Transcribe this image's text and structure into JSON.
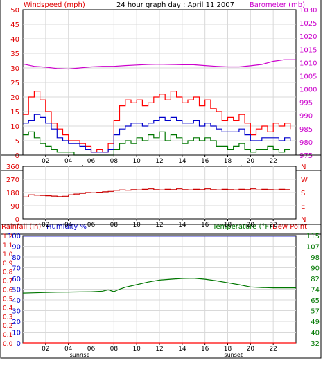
{
  "header": {
    "left_label": "Windspeed (mph)",
    "center_title": "24 hour graph day : April 11 2007",
    "right_label": "Barometer (mb)"
  },
  "colors": {
    "frame": "#000000",
    "grid": "#d9d9d9",
    "title_red": "#e00000",
    "title_magenta": "#cc00cc",
    "title_blue": "#0000cc",
    "title_green": "#007700",
    "wind_red": "#ff0000",
    "wind_blue": "#0000cc",
    "wind_green": "#007700",
    "barometer": "#cc00cc",
    "direction": "#cc0000",
    "humidity": "#0000cc",
    "temperature": "#007700",
    "rainfall": "#ff0000"
  },
  "chart_data": [
    {
      "type": "line",
      "title": "24 hour graph day : April 11 2007",
      "x_ticks": [
        "02",
        "04",
        "06",
        "08",
        "10",
        "12",
        "14",
        "16",
        "18",
        "20",
        "22"
      ],
      "x_annotations": [
        "sunrise",
        "sunset"
      ],
      "xlim": [
        0,
        24
      ],
      "ylabel": "Windspeed (mph)",
      "ylim": [
        0,
        50
      ],
      "y_ticks": [
        "0",
        "5",
        "10",
        "15",
        "20",
        "25",
        "30",
        "35",
        "40",
        "45",
        "50"
      ],
      "y2label": "Barometer (mb)",
      "y2lim": [
        975,
        1030
      ],
      "y2_ticks": [
        "975",
        "980",
        "985",
        "990",
        "995",
        "1000",
        "1005",
        "1010",
        "1015",
        "1020",
        "1025",
        "1030"
      ],
      "grid": true,
      "series": [
        {
          "axis": "left",
          "x": [
            0,
            0.5,
            1,
            1.5,
            2,
            2.5,
            3,
            3.5,
            4,
            4.5,
            5,
            5.5,
            6,
            6.5,
            7,
            7.5,
            8,
            8.5,
            9,
            9.5,
            10,
            10.5,
            11,
            11.5,
            12,
            12.5,
            13,
            13.5,
            14,
            14.5,
            15,
            15.5,
            16,
            16.5,
            17,
            17.5,
            18,
            18.5,
            19,
            19.5,
            20,
            20.5,
            21,
            21.5,
            22,
            22.5,
            23,
            23.5
          ],
          "values": [
            14,
            20,
            22,
            19,
            15,
            11,
            9,
            7,
            5,
            5,
            4,
            3,
            1,
            2,
            1,
            4,
            12,
            17,
            19,
            18,
            19,
            17,
            18,
            20,
            21,
            19,
            22,
            20,
            18,
            19,
            20,
            17,
            19,
            16,
            15,
            12,
            13,
            12,
            14,
            11,
            7,
            9,
            10,
            8,
            11,
            10,
            11,
            9
          ]
        },
        {
          "axis": "left",
          "x": [
            0,
            0.5,
            1,
            1.5,
            2,
            2.5,
            3,
            3.5,
            4,
            4.5,
            5,
            5.5,
            6,
            6.5,
            7,
            7.5,
            8,
            8.5,
            9,
            9.5,
            10,
            10.5,
            11,
            11.5,
            12,
            12.5,
            13,
            13.5,
            14,
            14.5,
            15,
            15.5,
            16,
            16.5,
            17,
            17.5,
            18,
            18.5,
            19,
            19.5,
            20,
            20.5,
            21,
            21.5,
            22,
            22.5,
            23,
            23.5
          ],
          "values": [
            11,
            12,
            14,
            13,
            11,
            9,
            6,
            5,
            4,
            4,
            3,
            2,
            1,
            1,
            1,
            2,
            7,
            9,
            10,
            11,
            11,
            10,
            11,
            12,
            13,
            12,
            13,
            12,
            11,
            11,
            12,
            10,
            11,
            10,
            9,
            8,
            8,
            8,
            9,
            7,
            5,
            5,
            6,
            6,
            6,
            5,
            6,
            5
          ]
        },
        {
          "axis": "left",
          "x": [
            0,
            0.5,
            1,
            1.5,
            2,
            2.5,
            3,
            3.5,
            4,
            4.5,
            5,
            5.5,
            6,
            6.5,
            7,
            7.5,
            8,
            8.5,
            9,
            9.5,
            10,
            10.5,
            11,
            11.5,
            12,
            12.5,
            13,
            13.5,
            14,
            14.5,
            15,
            15.5,
            16,
            16.5,
            17,
            17.5,
            18,
            18.5,
            19,
            19.5,
            20,
            20.5,
            21,
            21.5,
            22,
            22.5,
            23,
            23.5
          ],
          "values": [
            7,
            8,
            6,
            4,
            3,
            2,
            1,
            1,
            1,
            0,
            0,
            0,
            0,
            0,
            0,
            0,
            2,
            4,
            5,
            4,
            6,
            5,
            7,
            6,
            8,
            5,
            7,
            6,
            4,
            5,
            6,
            5,
            6,
            5,
            3,
            3,
            2,
            3,
            4,
            2,
            1,
            2,
            2,
            3,
            2,
            1,
            2,
            2
          ]
        },
        {
          "axis": "right",
          "x": [
            0,
            1,
            2,
            3,
            4,
            5,
            6,
            7,
            8,
            9,
            10,
            11,
            12,
            13,
            14,
            15,
            16,
            17,
            18,
            19,
            20,
            21,
            22,
            23,
            24
          ],
          "values": [
            1009.5,
            1008.6,
            1008.3,
            1007.8,
            1007.6,
            1008.0,
            1008.4,
            1008.6,
            1008.6,
            1008.9,
            1009.1,
            1009.3,
            1009.4,
            1009.3,
            1009.2,
            1009.2,
            1008.9,
            1008.6,
            1008.4,
            1008.4,
            1008.8,
            1009.3,
            1010.5,
            1011.1,
            1011.1
          ]
        }
      ]
    },
    {
      "type": "line",
      "x_ticks": [
        "02",
        "04",
        "06",
        "08",
        "10",
        "12",
        "14",
        "16",
        "18",
        "20",
        "22"
      ],
      "xlim": [
        0,
        24
      ],
      "ylim": [
        0,
        360
      ],
      "y_ticks": [
        "360",
        "270",
        "180",
        "90",
        "0"
      ],
      "y2_ticks": [
        "N",
        "W",
        "S",
        "E",
        "N"
      ],
      "grid": true,
      "series": [
        {
          "x": [
            0,
            0.5,
            1,
            1.5,
            2,
            2.5,
            3,
            3.5,
            4,
            4.5,
            5,
            5.5,
            6,
            6.5,
            7,
            7.5,
            8,
            8.5,
            9,
            9.5,
            10,
            10.5,
            11,
            11.5,
            12,
            12.5,
            13,
            13.5,
            14,
            14.5,
            15,
            15.5,
            16,
            16.5,
            17,
            17.5,
            18,
            18.5,
            19,
            19.5,
            20,
            20.5,
            21,
            21.5,
            22,
            22.5,
            23,
            23.5
          ],
          "values": [
            150,
            165,
            162,
            160,
            158,
            156,
            152,
            155,
            165,
            170,
            175,
            180,
            178,
            182,
            185,
            188,
            195,
            198,
            196,
            200,
            198,
            202,
            205,
            200,
            198,
            202,
            200,
            205,
            200,
            198,
            202,
            200,
            205,
            200,
            198,
            202,
            200,
            198,
            202,
            200,
            205,
            198,
            202,
            200,
            198,
            202,
            200,
            200
          ]
        }
      ]
    },
    {
      "type": "line",
      "x_ticks": [
        "02",
        "04",
        "06",
        "08",
        "10",
        "12",
        "14",
        "16",
        "18",
        "20",
        "22"
      ],
      "x_annotations": [
        "sunrise",
        "sunset"
      ],
      "xlim": [
        0,
        24
      ],
      "ylabel": "Humidity %",
      "ylim": [
        0,
        100
      ],
      "y_ticks": [
        "0",
        "10",
        "20",
        "30",
        "40",
        "50",
        "60",
        "70",
        "80",
        "90",
        "100"
      ],
      "y0label": "Rainfall (in)",
      "y0lim": [
        0,
        1.2
      ],
      "y0_ticks": [
        "0.0",
        "0.1",
        "0.2",
        "0.3",
        "0.4",
        "0.5",
        "0.6",
        "0.7",
        "0.8",
        "0.9",
        "1.0",
        "1.1",
        "1.2"
      ],
      "y2label": "Temperature (°F)",
      "y2lim": [
        32,
        115
      ],
      "y2_ticks": [
        "32",
        "40",
        "49",
        "57",
        "65",
        "74",
        "82",
        "90",
        "98",
        "107",
        "115"
      ],
      "extra_label": "Dew Point",
      "grid": true,
      "series": [
        {
          "name": "Humidity %",
          "axis": "humidity",
          "x": [
            0,
            24
          ],
          "values": [
            99.5,
            99.5
          ]
        },
        {
          "name": "Temperature (°F)",
          "axis": "right",
          "x": [
            0,
            1,
            2,
            3,
            4,
            5,
            6,
            7,
            7.5,
            8,
            8.5,
            9,
            10,
            11,
            12,
            13,
            14,
            15,
            16,
            17,
            18,
            19,
            20,
            21,
            22,
            23,
            24
          ],
          "values": [
            70.5,
            70.7,
            71.0,
            71.2,
            71.3,
            71.4,
            71.5,
            72.0,
            73.0,
            71.6,
            73.5,
            75.0,
            77.0,
            79.0,
            80.5,
            81.2,
            81.8,
            82.0,
            81.2,
            80.0,
            78.5,
            77.0,
            75.2,
            74.8,
            74.5,
            74.5,
            74.5
          ]
        },
        {
          "name": "Rainfall (in)",
          "axis": "rain",
          "x": [
            0,
            24
          ],
          "values": [
            0,
            0
          ]
        }
      ]
    }
  ]
}
